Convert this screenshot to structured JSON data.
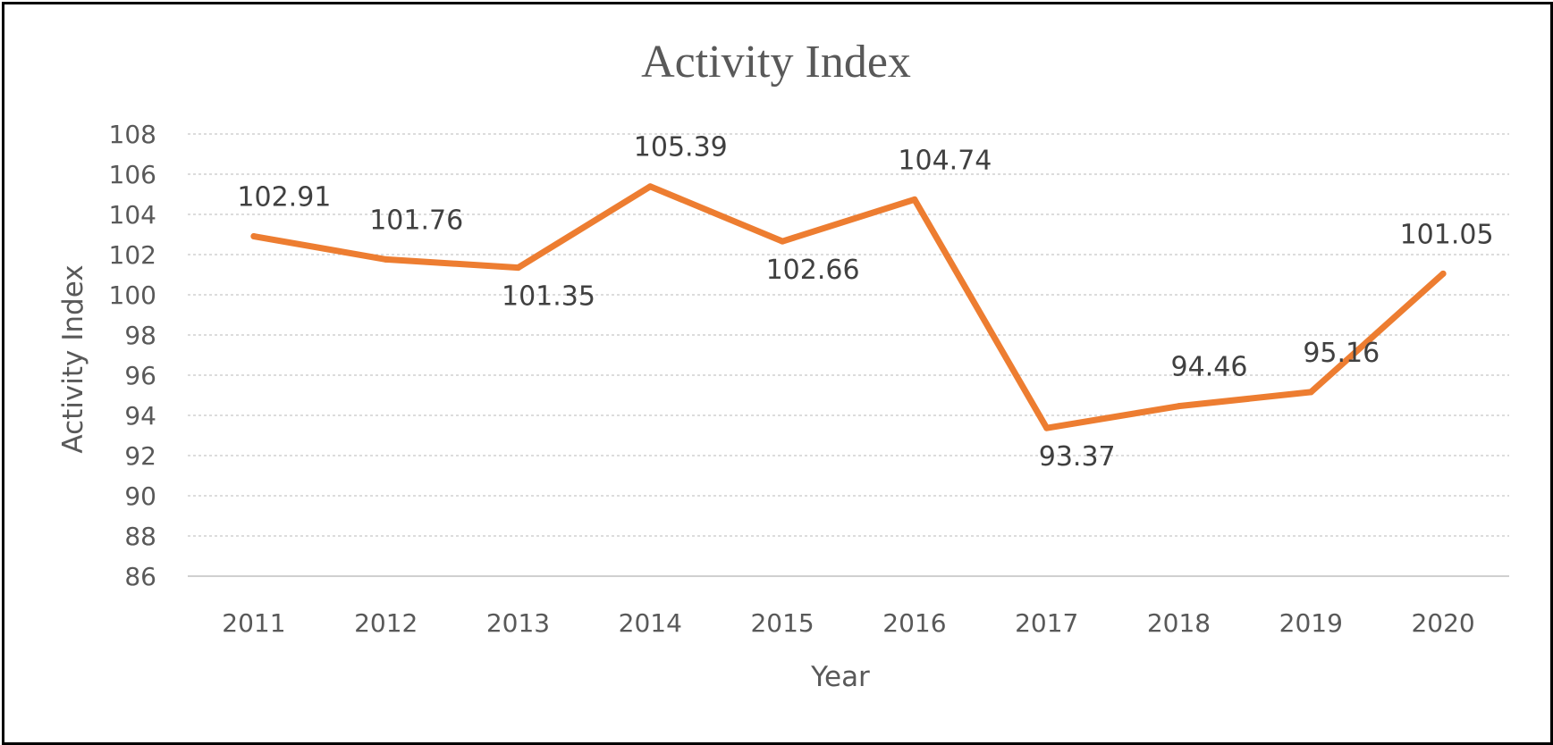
{
  "chart_data": {
    "type": "line",
    "title": "Activity Index",
    "xlabel": "Year",
    "ylabel": "Activity Index",
    "categories": [
      "2011",
      "2012",
      "2013",
      "2014",
      "2015",
      "2016",
      "2017",
      "2018",
      "2019",
      "2020"
    ],
    "series": [
      {
        "values": [
          102.91,
          101.76,
          101.35,
          105.39,
          102.66,
          104.74,
          93.37,
          94.46,
          95.16,
          101.05
        ],
        "labels": [
          "102.91",
          "101.76",
          "101.35",
          "105.39",
          "102.66",
          "104.74",
          "93.37",
          "94.46",
          "95.16",
          "101.05"
        ],
        "color": "#ED7D31"
      }
    ],
    "ylim": [
      86,
      108
    ],
    "yticks": [
      "86",
      "88",
      "90",
      "92",
      "94",
      "96",
      "98",
      "100",
      "102",
      "104",
      "106",
      "108"
    ],
    "grid": true,
    "legend": "none"
  }
}
